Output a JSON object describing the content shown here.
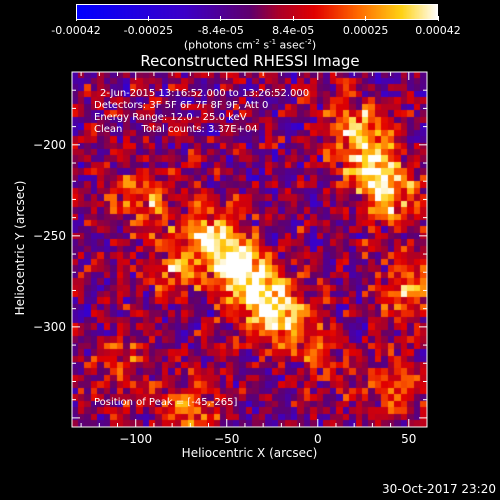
{
  "chart_data": {
    "type": "heatmap",
    "title": "Reconstructed RHESSI Image",
    "xlabel": "Heliocentric X (arcsec)",
    "ylabel": "Heliocentric Y (arcsec)",
    "xlim": [
      -135,
      60
    ],
    "ylim": [
      -355,
      -160
    ],
    "xticks": [
      -100,
      -50,
      0,
      50
    ],
    "yticks": [
      -200,
      -250,
      -300
    ],
    "info_lines": [
      "2-Jun-2015 13:16:52.000 to 13:26:52.000",
      "Detectors: 3F 5F 6F 7F 8F 9F, Att 0",
      "Energy Range: 12.0 - 25.0 keV",
      "Clean      Total counts: 3.37E+04"
    ],
    "peak_label": "Position of Peak = [-45,-265]",
    "colorbar": {
      "ticks": [
        "-0.00042",
        "-0.00025",
        "-8.4e-05",
        "8.4e-05",
        "0.00025",
        "0.00042"
      ],
      "range": [
        -0.00042,
        0.00042
      ],
      "unit_prefix": "(photons cm",
      "unit_sup1": "-2",
      "unit_mid": " s",
      "unit_sup2": "-1",
      "unit_mid2": " asec",
      "unit_sup3": "-2",
      "unit_suffix": ")"
    },
    "sources": [
      {
        "x": -45,
        "y": -265,
        "value": 0.00042
      },
      {
        "x": -30,
        "y": -283,
        "value": 0.00036
      },
      {
        "x": -62,
        "y": -250,
        "value": 0.0003
      },
      {
        "x": -18,
        "y": -300,
        "value": 0.00028
      },
      {
        "x": 30,
        "y": -210,
        "value": 0.00035
      },
      {
        "x": 40,
        "y": -228,
        "value": 0.0003
      },
      {
        "x": 20,
        "y": -190,
        "value": 0.00025
      },
      {
        "x": 50,
        "y": -280,
        "value": 0.00028
      },
      {
        "x": -95,
        "y": -230,
        "value": 0.00022
      },
      {
        "x": -80,
        "y": -270,
        "value": 0.00018
      },
      {
        "x": -70,
        "y": -345,
        "value": 0.00022
      },
      {
        "x": -110,
        "y": -320,
        "value": 0.00015
      },
      {
        "x": 5,
        "y": -320,
        "value": 0.00015
      },
      {
        "x": 45,
        "y": -335,
        "value": 0.0002
      }
    ]
  },
  "footer": {
    "timestamp": "30-Oct-2017 23:20"
  }
}
